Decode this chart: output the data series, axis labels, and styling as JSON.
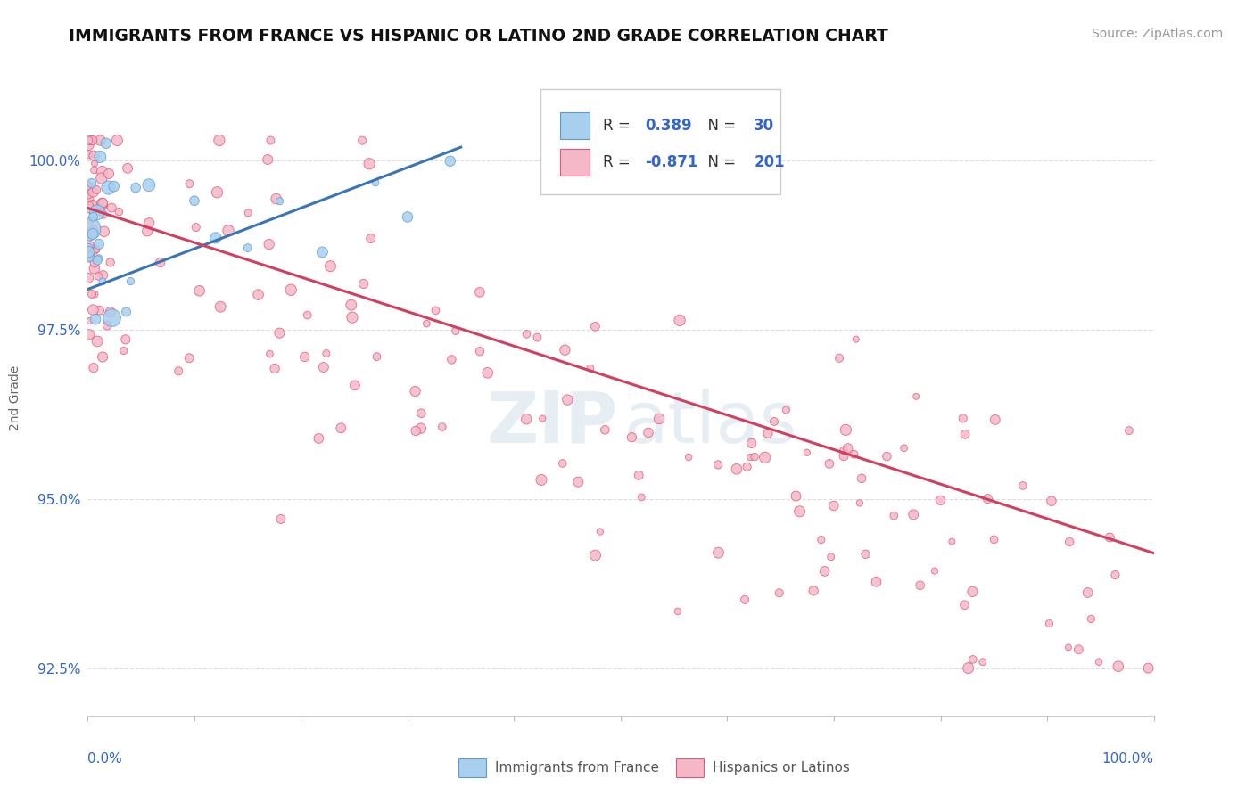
{
  "title": "IMMIGRANTS FROM FRANCE VS HISPANIC OR LATINO 2ND GRADE CORRELATION CHART",
  "source_text": "Source: ZipAtlas.com",
  "ylabel": "2nd Grade",
  "blue_color": "#A8CFEE",
  "blue_edge_color": "#5B9BD5",
  "pink_color": "#F4B8C8",
  "pink_edge_color": "#E05878",
  "trend_blue_color": "#3A75B5",
  "trend_pink_color": "#D04060",
  "label_color": "#3366CC",
  "grid_color": "#DDDDDD",
  "background_color": "#FFFFFF",
  "xmin": 0.0,
  "xmax": 100.0,
  "ymin": 91.8,
  "ymax": 101.2,
  "ytick_labels": [
    "92.5%",
    "95.0%",
    "97.5%",
    "100.0%"
  ],
  "ytick_values": [
    92.5,
    95.0,
    97.5,
    100.0
  ],
  "legend_r_blue_val": "0.389",
  "legend_n_blue_val": "30",
  "legend_r_pink_val": "-0.871",
  "legend_n_pink_val": "201",
  "blue_trend_x": [
    0.0,
    35.0
  ],
  "blue_trend_y": [
    98.1,
    100.2
  ],
  "pink_trend_x": [
    0.0,
    100.0
  ],
  "pink_trend_y": [
    99.3,
    94.2
  ]
}
